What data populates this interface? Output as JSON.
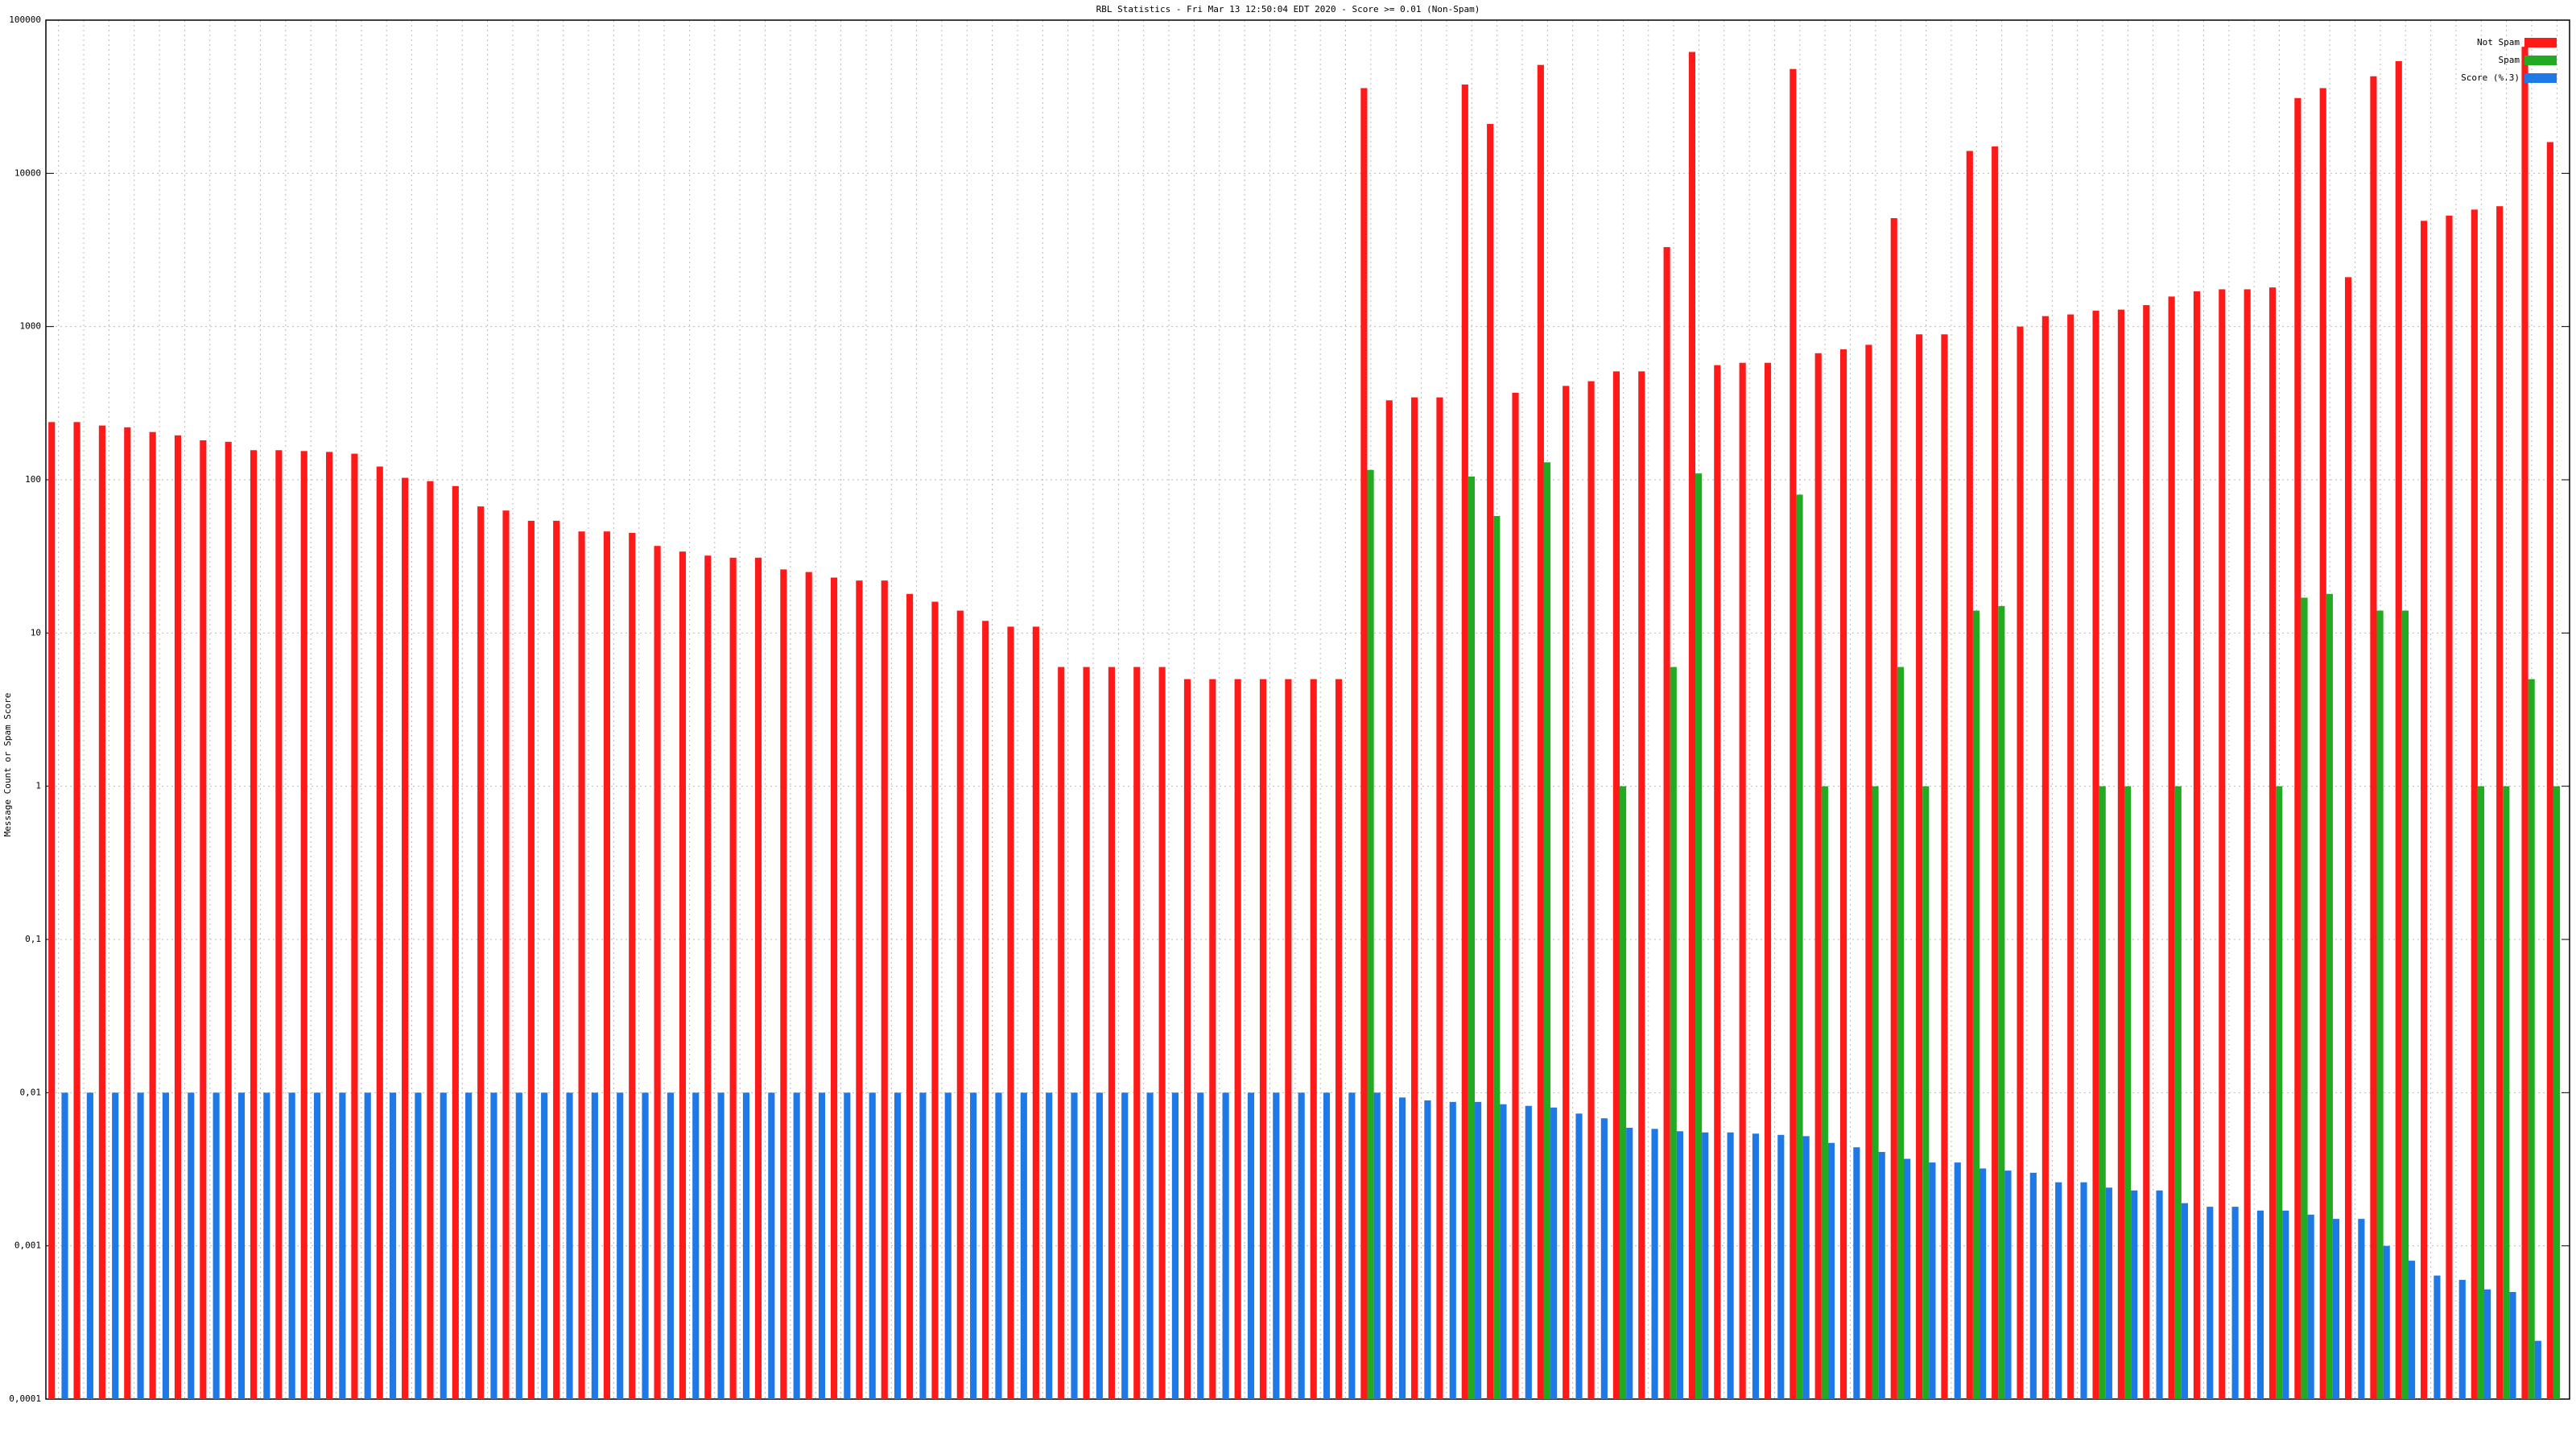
{
  "chart_data": {
    "type": "bar",
    "title": "RBL Statistics - Fri Mar 13 12:50:04 EDT 2020 - Score >= 0.01 (Non-Spam)",
    "y_label": "Message Count or Spam Score",
    "log_scale": true,
    "grid": true,
    "legend": "top-right",
    "categories": [
      null,
      null,
      null,
      null,
      null,
      null,
      null,
      null,
      null,
      null,
      null,
      null,
      null,
      null,
      null,
      null,
      null,
      null,
      null,
      null,
      null,
      null,
      null,
      null,
      null,
      null,
      null,
      null,
      null,
      null,
      null,
      null,
      null,
      null,
      null,
      null,
      null,
      null,
      null,
      null,
      null,
      null,
      null,
      null,
      null,
      null,
      null,
      null,
      null,
      null,
      null,
      null,
      null,
      null,
      null,
      null,
      null,
      null,
      null,
      null,
      null,
      null,
      null,
      null,
      null,
      null,
      null,
      null,
      null,
      null,
      null,
      null,
      null,
      null,
      null,
      null,
      null,
      null,
      null,
      null,
      null,
      null,
      null,
      null,
      null,
      null,
      null,
      null,
      null,
      null,
      null,
      null,
      null,
      null,
      null,
      null,
      null,
      null,
      null,
      null
    ],
    "series": [
      {
        "name": "Not Spam",
        "color": "#ff1a1a",
        "values": [
          238,
          238,
          226,
          220,
          205,
          195,
          181,
          177,
          156,
          156,
          154,
          152,
          148,
          122,
          103,
          98,
          91,
          67,
          63,
          54,
          54,
          46,
          46,
          45,
          37,
          34,
          32,
          31,
          31,
          26,
          25,
          23,
          22,
          22,
          18,
          16,
          14,
          12,
          11,
          11,
          6,
          6,
          6,
          6,
          6,
          5,
          5,
          5,
          5,
          5,
          5,
          5,
          36000,
          330,
          345,
          345,
          38000,
          21000,
          370,
          51000,
          410,
          440,
          510,
          510,
          3300,
          62000,
          560,
          580,
          580,
          48000,
          670,
          710,
          760,
          5100,
          890,
          890,
          14000,
          15000,
          1000,
          1170,
          1200,
          1270,
          1290,
          1380,
          1570,
          1700,
          1750,
          1750,
          1800,
          31000,
          36000,
          2100,
          43000,
          54000,
          4900,
          5300,
          5800,
          6100,
          67000,
          16000
        ]
      },
      {
        "name": "Spam",
        "color": "#22aa22",
        "values": [
          null,
          null,
          null,
          null,
          null,
          null,
          null,
          null,
          null,
          null,
          null,
          null,
          null,
          null,
          null,
          null,
          null,
          null,
          null,
          null,
          null,
          null,
          null,
          null,
          null,
          null,
          null,
          null,
          null,
          null,
          null,
          null,
          null,
          null,
          null,
          null,
          null,
          null,
          null,
          null,
          null,
          null,
          null,
          null,
          null,
          null,
          null,
          null,
          null,
          null,
          null,
          null,
          116,
          null,
          null,
          null,
          105,
          58,
          null,
          130,
          null,
          null,
          1,
          null,
          6,
          110,
          null,
          null,
          null,
          80,
          1,
          null,
          1,
          6,
          1,
          null,
          14,
          15,
          null,
          null,
          null,
          1,
          1,
          null,
          1,
          null,
          null,
          null,
          1,
          17,
          18,
          null,
          14,
          14,
          null,
          null,
          1,
          1,
          5,
          1
        ]
      },
      {
        "name": "Score (%.3)",
        "color": "#1e78e6",
        "values": [
          0.01,
          0.01,
          0.01,
          0.01,
          0.01,
          0.01,
          0.01,
          0.01,
          0.01,
          0.01,
          0.01,
          0.01,
          0.01,
          0.01,
          0.01,
          0.01,
          0.01,
          0.01,
          0.01,
          0.01,
          0.01,
          0.01,
          0.01,
          0.01,
          0.01,
          0.01,
          0.01,
          0.01,
          0.01,
          0.01,
          0.01,
          0.01,
          0.01,
          0.01,
          0.01,
          0.01,
          0.01,
          0.01,
          0.01,
          0.01,
          0.01,
          0.01,
          0.01,
          0.01,
          0.01,
          0.01,
          0.01,
          0.01,
          0.01,
          0.01,
          0.01,
          0.01,
          0.01,
          0.0093,
          0.0089,
          0.0087,
          0.0087,
          0.0084,
          0.0082,
          0.008,
          0.0073,
          0.0068,
          0.0059,
          0.0058,
          0.0056,
          0.0055,
          0.0055,
          0.0054,
          0.0053,
          0.0052,
          0.0047,
          0.0044,
          0.0041,
          0.0037,
          0.0035,
          0.0035,
          0.0032,
          0.0031,
          0.003,
          0.0026,
          0.0026,
          0.0024,
          0.0023,
          0.0023,
          0.0019,
          0.0018,
          0.0018,
          0.0017,
          0.0017,
          0.0016,
          0.0015,
          0.0015,
          0.001,
          0.0008,
          0.00064,
          0.0006,
          0.00052,
          0.0005,
          0.00024,
          null
        ]
      }
    ],
    "ylim": [
      0.0001,
      100000
    ],
    "yticks": [
      {
        "value": 0.0001,
        "label": "0,0001"
      },
      {
        "value": 0.001,
        "label": "0,001"
      },
      {
        "value": 0.01,
        "label": "0,01"
      },
      {
        "value": 0.1,
        "label": "0,1"
      },
      1,
      10,
      100,
      1000,
      10000,
      100000
    ]
  }
}
